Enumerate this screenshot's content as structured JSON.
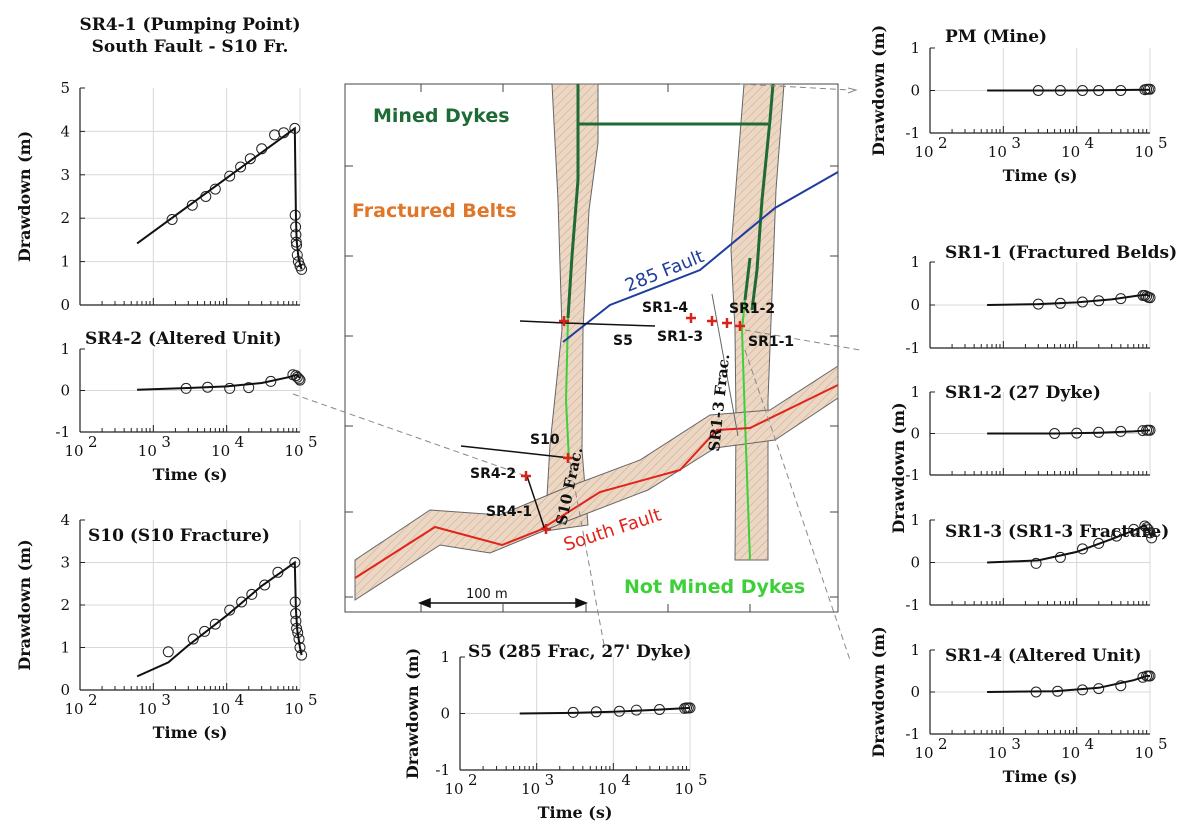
{
  "colors": {
    "mined_dyke": "#1f6b35",
    "not_mined_dyke": "#3fcf3a",
    "fractured_belt_text": "#e0762a",
    "belt_fill": "#ecd7c4",
    "belt_outline": "#555555",
    "fault_285": "#1f3e9c",
    "south_fault": "#e2231a",
    "well_marker": "#d9221a"
  },
  "map": {
    "labels": {
      "mined_dykes": "Mined Dykes",
      "fractured_belts": "Fractured Belts",
      "fault_285": "285 Fault",
      "south_fault": "South Fault",
      "not_mined_dykes": "Not Mined Dykes",
      "s10_frac": "S10 Frac.",
      "sr13_frac": "SR1-3 Frac."
    },
    "scale_bar": "100 m",
    "wells": [
      {
        "id": "S5",
        "label": "S5"
      },
      {
        "id": "S10",
        "label": "S10"
      },
      {
        "id": "SR4-1",
        "label": "SR4-1"
      },
      {
        "id": "SR4-2",
        "label": "SR4-2"
      },
      {
        "id": "SR1-1",
        "label": "SR1-1"
      },
      {
        "id": "SR1-2",
        "label": "SR1-2"
      },
      {
        "id": "SR1-3",
        "label": "SR1-3"
      },
      {
        "id": "SR1-4",
        "label": "SR1-4"
      }
    ]
  },
  "chart_data": [
    {
      "type": "scatter",
      "title": [
        "SR4-1 (Pumping Point)",
        "South Fault - S10 Fr."
      ],
      "xlabel": "",
      "ylabel": "Drawdown (m)",
      "xscale": "log",
      "xlim": [
        100,
        100000
      ],
      "ylim": [
        0,
        5
      ],
      "yticks": [
        0,
        1,
        2,
        3,
        4,
        5
      ],
      "xticks": [
        100,
        1000,
        10000,
        100000
      ],
      "xticklabels": [],
      "grid": true,
      "series": [
        {
          "kind": "points",
          "x": [
            1800,
            3400,
            5200,
            7000,
            11000,
            15500,
            21000,
            30000,
            45000,
            60000,
            85000,
            86000,
            87000,
            88000,
            89000,
            90000,
            92000,
            95000,
            100000,
            105000
          ],
          "y": [
            1.97,
            2.3,
            2.5,
            2.67,
            2.97,
            3.18,
            3.37,
            3.6,
            3.92,
            3.97,
            4.07,
            2.07,
            1.8,
            1.62,
            1.45,
            1.38,
            1.15,
            1.0,
            0.9,
            0.82
          ]
        },
        {
          "kind": "line",
          "x": [
            600,
            85000,
            88000,
            90000,
            95000,
            100000,
            105000
          ],
          "y": [
            1.42,
            4.07,
            2.1,
            1.5,
            1.1,
            0.95,
            0.82
          ]
        }
      ]
    },
    {
      "type": "scatter",
      "title": [
        "SR4-2 (Altered Unit)"
      ],
      "xlabel": "Time (s)",
      "ylabel": "",
      "xscale": "log",
      "xlim": [
        100,
        100000
      ],
      "ylim": [
        -1,
        1
      ],
      "yticks": [
        -1,
        0,
        1
      ],
      "xticks": [
        100,
        1000,
        10000,
        100000
      ],
      "xticklabels": [
        "10",
        "10",
        "10",
        "10"
      ],
      "xticksup": [
        "2",
        "3",
        "4",
        "5"
      ],
      "grid": true,
      "series": [
        {
          "kind": "points",
          "x": [
            2800,
            5500,
            11000,
            20000,
            40000,
            80000,
            88000,
            92000,
            97000,
            100000
          ],
          "y": [
            0.05,
            0.08,
            0.05,
            0.07,
            0.22,
            0.38,
            0.36,
            0.32,
            0.28,
            0.25
          ]
        },
        {
          "kind": "line",
          "x": [
            600,
            3000,
            10000,
            30000,
            70000,
            90000,
            100000
          ],
          "y": [
            0.02,
            0.06,
            0.1,
            0.18,
            0.32,
            0.38,
            0.3
          ]
        }
      ]
    },
    {
      "type": "scatter",
      "title": [
        "S10 (S10 Fracture)"
      ],
      "xlabel": "Time (s)",
      "ylabel": "Drawdown (m)",
      "xscale": "log",
      "xlim": [
        100,
        100000
      ],
      "ylim": [
        0,
        4
      ],
      "yticks": [
        0,
        1,
        2,
        3,
        4
      ],
      "xticks": [
        100,
        1000,
        10000,
        100000
      ],
      "xticklabels": [
        "10",
        "10",
        "10",
        "10"
      ],
      "xticksup": [
        "2",
        "3",
        "4",
        "5"
      ],
      "grid": true,
      "series": [
        {
          "kind": "points",
          "x": [
            1600,
            3500,
            5000,
            7000,
            11000,
            16000,
            22000,
            33000,
            50000,
            85000,
            86000,
            87000,
            88000,
            90000,
            93000,
            97000,
            100000,
            105000
          ],
          "y": [
            0.9,
            1.2,
            1.38,
            1.55,
            1.88,
            2.07,
            2.25,
            2.47,
            2.77,
            3.0,
            2.07,
            1.8,
            1.62,
            1.45,
            1.35,
            1.2,
            1.0,
            0.82
          ]
        },
        {
          "kind": "line",
          "x": [
            600,
            1600,
            3000,
            10000,
            30000,
            85000,
            88000,
            92000,
            100000,
            105000
          ],
          "y": [
            0.32,
            0.65,
            1.05,
            1.75,
            2.45,
            3.0,
            1.9,
            1.4,
            1.0,
            0.82
          ]
        }
      ]
    },
    {
      "type": "scatter",
      "title": [
        "S5 (285 Frac,  27' Dyke)"
      ],
      "xlabel": "Time (s)",
      "ylabel": "Drawdown (m)",
      "xscale": "log",
      "xlim": [
        100,
        100000
      ],
      "ylim": [
        -1,
        1
      ],
      "yticks": [
        -1,
        0,
        1
      ],
      "xticks": [
        100,
        1000,
        10000,
        100000
      ],
      "xticklabels": [
        "10",
        "10",
        "10",
        "10"
      ],
      "xticksup": [
        "2",
        "3",
        "4",
        "5"
      ],
      "grid": true,
      "series": [
        {
          "kind": "points",
          "x": [
            3000,
            6000,
            12000,
            20000,
            40000,
            85000,
            90000,
            95000,
            100000
          ],
          "y": [
            0.02,
            0.03,
            0.04,
            0.06,
            0.07,
            0.09,
            0.1,
            0.1,
            0.1
          ]
        },
        {
          "kind": "line",
          "x": [
            600,
            3000,
            10000,
            30000,
            100000
          ],
          "y": [
            0.0,
            0.01,
            0.03,
            0.06,
            0.1
          ]
        }
      ]
    },
    {
      "type": "scatter",
      "title": [
        "PM (Mine)"
      ],
      "xlabel": "Time (s)",
      "ylabel": "Drawdown (m)",
      "xscale": "log",
      "xlim": [
        100,
        100000
      ],
      "ylim": [
        -1,
        1
      ],
      "yticks": [
        -1,
        0,
        1
      ],
      "xticks": [
        100,
        1000,
        10000,
        100000
      ],
      "xticklabels": [
        "10",
        "10",
        "10",
        "10"
      ],
      "xticksup": [
        "2",
        "3",
        "4",
        "5"
      ],
      "grid": true,
      "series": [
        {
          "kind": "points",
          "x": [
            3000,
            6000,
            12000,
            20000,
            40000,
            85000,
            90000,
            95000,
            100000
          ],
          "y": [
            0.0,
            0.0,
            0.0,
            0.0,
            0.0,
            0.02,
            0.03,
            0.03,
            0.03
          ]
        },
        {
          "kind": "line",
          "x": [
            600,
            10000,
            100000
          ],
          "y": [
            0.0,
            0.0,
            0.02
          ]
        }
      ]
    },
    {
      "type": "scatter",
      "title": [
        "SR1-1 (Fractured Belds)"
      ],
      "xlabel": "",
      "ylabel": "",
      "xscale": "log",
      "xlim": [
        100,
        100000
      ],
      "ylim": [
        -1,
        1
      ],
      "yticks": [
        -1,
        0,
        1
      ],
      "xticks": [
        100,
        1000,
        10000,
        100000
      ],
      "xticklabels": [],
      "grid": true,
      "series": [
        {
          "kind": "points",
          "x": [
            3000,
            6000,
            12000,
            20000,
            40000,
            80000,
            85000,
            90000,
            95000,
            100000
          ],
          "y": [
            0.02,
            0.04,
            0.07,
            0.1,
            0.15,
            0.22,
            0.22,
            0.2,
            0.18,
            0.17
          ]
        },
        {
          "kind": "line",
          "x": [
            600,
            3000,
            10000,
            30000,
            70000,
            90000,
            100000
          ],
          "y": [
            0.0,
            0.02,
            0.06,
            0.13,
            0.22,
            0.24,
            0.2
          ]
        }
      ]
    },
    {
      "type": "scatter",
      "title": [
        "SR1-2 (27 Dyke)"
      ],
      "xlabel": "",
      "ylabel": "",
      "xscale": "log",
      "xlim": [
        100,
        100000
      ],
      "ylim": [
        -1,
        1
      ],
      "yticks": [
        -1,
        0,
        1
      ],
      "xticks": [
        100,
        1000,
        10000,
        100000
      ],
      "xticklabels": [],
      "grid": true,
      "series": [
        {
          "kind": "points",
          "x": [
            5000,
            10000,
            20000,
            40000,
            80000,
            90000,
            95000,
            100000
          ],
          "y": [
            0.0,
            0.01,
            0.03,
            0.05,
            0.07,
            0.08,
            0.08,
            0.08
          ]
        },
        {
          "kind": "line",
          "x": [
            600,
            5000,
            20000,
            60000,
            100000
          ],
          "y": [
            0.0,
            0.0,
            0.02,
            0.05,
            0.08
          ]
        }
      ]
    },
    {
      "type": "scatter",
      "title": [
        "SR1-3 (SR1-3 Fracture)"
      ],
      "xlabel": "",
      "ylabel": "",
      "xscale": "log",
      "xlim": [
        100,
        100000
      ],
      "ylim": [
        -1,
        1
      ],
      "yticks": [
        -1,
        0,
        1
      ],
      "xticks": [
        100,
        1000,
        10000,
        100000
      ],
      "xticklabels": [],
      "grid": true,
      "series": [
        {
          "kind": "points",
          "x": [
            2800,
            6000,
            12000,
            20000,
            35000,
            60000,
            85000,
            90000,
            95000,
            100000,
            105000
          ],
          "y": [
            -0.02,
            0.12,
            0.32,
            0.45,
            0.62,
            0.78,
            0.86,
            0.82,
            0.77,
            0.7,
            0.58
          ]
        },
        {
          "kind": "line",
          "x": [
            600,
            3000,
            10000,
            30000,
            70000,
            85000,
            95000,
            105000
          ],
          "y": [
            0.0,
            0.05,
            0.25,
            0.55,
            0.8,
            0.88,
            0.75,
            0.6
          ]
        }
      ]
    },
    {
      "type": "scatter",
      "title": [
        "SR1-4 (Altered Unit)"
      ],
      "xlabel": "Time (s)",
      "ylabel": "Drawdown (m)",
      "xscale": "log",
      "xlim": [
        100,
        100000
      ],
      "ylim": [
        -1,
        1
      ],
      "yticks": [
        -1,
        0,
        1
      ],
      "xticks": [
        100,
        1000,
        10000,
        100000
      ],
      "xticklabels": [
        "10",
        "10",
        "10",
        "10"
      ],
      "xticksup": [
        "2",
        "3",
        "4",
        "5"
      ],
      "grid": true,
      "series": [
        {
          "kind": "points",
          "x": [
            2800,
            5500,
            12000,
            20000,
            40000,
            80000,
            90000,
            95000,
            100000
          ],
          "y": [
            0.0,
            0.02,
            0.05,
            0.08,
            0.15,
            0.35,
            0.38,
            0.38,
            0.38
          ]
        },
        {
          "kind": "line",
          "x": [
            600,
            5000,
            20000,
            60000,
            90000,
            100000
          ],
          "y": [
            0.0,
            0.02,
            0.1,
            0.28,
            0.38,
            0.38
          ]
        }
      ]
    }
  ],
  "shared_labels": {
    "right_drawdown_ylabel": "Drawdown (m)"
  }
}
